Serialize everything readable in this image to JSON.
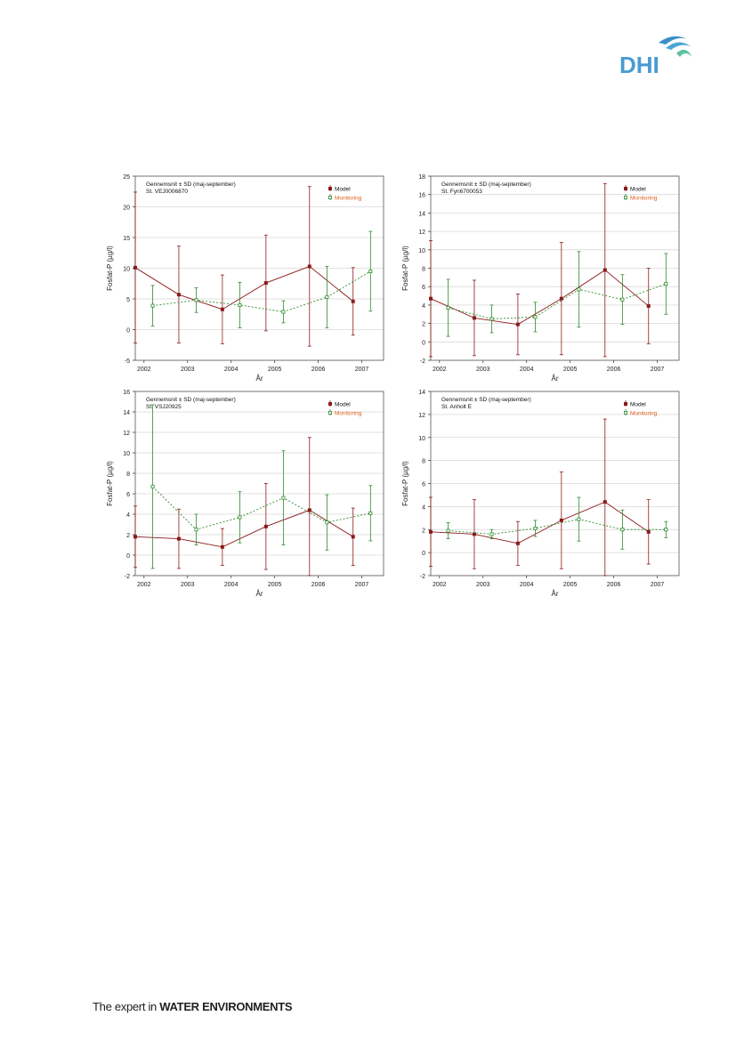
{
  "logo": {
    "text": "DHI",
    "color": "#4a9bd0",
    "accent": "#5cc3a0"
  },
  "footer": {
    "lead": "The expert in ",
    "emphasis": "WATER ENVIRONMENTS"
  },
  "colors": {
    "model": "#8b1a1a",
    "monitoring": "#2e8b2e",
    "legend_text_monitoring": "#e06020"
  },
  "chart_data": [
    {
      "type": "line",
      "annotation_line1": "Gennemsnit ± SD (maj-september)",
      "annotation_line2": "St. VEJ0006870",
      "xlabel": "År",
      "ylabel": "Fosfat-P (µg/l)",
      "x_ticks": [
        "2002",
        "2003",
        "2004",
        "2005",
        "2006",
        "2007"
      ],
      "ylim": [
        -5,
        25
      ],
      "y_ticks": [
        "-5",
        "0",
        "5",
        "10",
        "15",
        "20",
        "25"
      ],
      "grid": true,
      "legend": "top-right",
      "series": [
        {
          "name": "Model",
          "x": [
            2001.8,
            2002.8,
            2003.8,
            2004.8,
            2005.8,
            2006.8
          ],
          "mean": [
            10.1,
            5.7,
            3.3,
            7.6,
            10.3,
            4.6
          ],
          "sd": [
            12.3,
            7.9,
            5.6,
            7.8,
            13.0,
            5.5
          ]
        },
        {
          "name": "Monitoring",
          "x": [
            2002.2,
            2003.2,
            2004.2,
            2005.2,
            2006.2,
            2007.2
          ],
          "mean": [
            3.9,
            4.8,
            4.0,
            2.9,
            5.3,
            9.5
          ],
          "sd": [
            3.3,
            2.0,
            3.7,
            1.8,
            5.0,
            6.5
          ]
        }
      ]
    },
    {
      "type": "line",
      "annotation_line1": "Gennemsnit ± SD (maj-september)",
      "annotation_line2": "St. Fyn6700053",
      "xlabel": "År",
      "ylabel": "Fosfat-P (µg/l)",
      "x_ticks": [
        "2002",
        "2003",
        "2004",
        "2005",
        "2006",
        "2007"
      ],
      "ylim": [
        -2,
        18
      ],
      "y_ticks": [
        "-2",
        "0",
        "2",
        "4",
        "6",
        "8",
        "10",
        "12",
        "14",
        "16",
        "18"
      ],
      "grid": true,
      "legend": "top-right",
      "series": [
        {
          "name": "Model",
          "x": [
            2001.8,
            2002.8,
            2003.8,
            2004.8,
            2005.8,
            2006.8
          ],
          "mean": [
            4.7,
            2.6,
            1.9,
            4.7,
            7.8,
            3.9
          ],
          "sd": [
            6.3,
            4.1,
            3.3,
            6.1,
            9.4,
            4.1
          ]
        },
        {
          "name": "Monitoring",
          "x": [
            2002.2,
            2003.2,
            2004.2,
            2005.2,
            2006.2,
            2007.2
          ],
          "mean": [
            3.7,
            2.5,
            2.7,
            5.7,
            4.6,
            6.3
          ],
          "sd": [
            3.1,
            1.5,
            1.6,
            4.1,
            2.7,
            3.3
          ]
        }
      ]
    },
    {
      "type": "line",
      "annotation_line1": "Gennemsnit ± SD (maj-september)",
      "annotation_line2": "St. VSJ20925",
      "xlabel": "År",
      "ylabel": "Fosfat-P (µg/l)",
      "x_ticks": [
        "2002",
        "2003",
        "2004",
        "2005",
        "2006",
        "2007"
      ],
      "ylim": [
        -2,
        16
      ],
      "y_ticks": [
        "-2",
        "0",
        "2",
        "4",
        "6",
        "8",
        "10",
        "12",
        "14",
        "16"
      ],
      "grid": true,
      "legend": "top-right",
      "series": [
        {
          "name": "Model",
          "x": [
            2001.8,
            2002.8,
            2003.8,
            2004.8,
            2005.8,
            2006.8
          ],
          "mean": [
            1.8,
            1.6,
            0.8,
            2.8,
            4.4,
            1.8
          ],
          "sd": [
            3.0,
            2.9,
            1.8,
            4.2,
            7.1,
            2.8
          ]
        },
        {
          "name": "Monitoring",
          "x": [
            2002.2,
            2003.2,
            2004.2,
            2005.2,
            2006.2,
            2007.2
          ],
          "mean": [
            6.7,
            2.5,
            3.7,
            5.6,
            3.2,
            4.1
          ],
          "sd": [
            8.0,
            1.5,
            2.5,
            4.6,
            2.7,
            2.7
          ]
        }
      ]
    },
    {
      "type": "line",
      "annotation_line1": "Gennemsnit ± SD (maj-september)",
      "annotation_line2": "St. Anholt E",
      "xlabel": "År",
      "ylabel": "Fosfat-P (µg/l)",
      "x_ticks": [
        "2002",
        "2003",
        "2004",
        "2005",
        "2006",
        "2007"
      ],
      "ylim": [
        -2,
        14
      ],
      "y_ticks": [
        "-2",
        "0",
        "2",
        "4",
        "6",
        "8",
        "10",
        "12",
        "14"
      ],
      "grid": true,
      "legend": "top-right",
      "series": [
        {
          "name": "Model",
          "x": [
            2001.8,
            2002.8,
            2003.8,
            2004.8,
            2005.8,
            2006.8
          ],
          "mean": [
            1.8,
            1.6,
            0.8,
            2.8,
            4.4,
            1.8
          ],
          "sd": [
            3.0,
            3.0,
            1.9,
            4.2,
            7.2,
            2.8
          ]
        },
        {
          "name": "Monitoring",
          "x": [
            2002.2,
            2003.2,
            2004.2,
            2005.2,
            2006.2,
            2007.2
          ],
          "mean": [
            1.9,
            1.6,
            2.1,
            2.9,
            2.0,
            2.0
          ],
          "sd": [
            0.7,
            0.4,
            0.7,
            1.9,
            1.7,
            0.7
          ]
        }
      ]
    }
  ]
}
